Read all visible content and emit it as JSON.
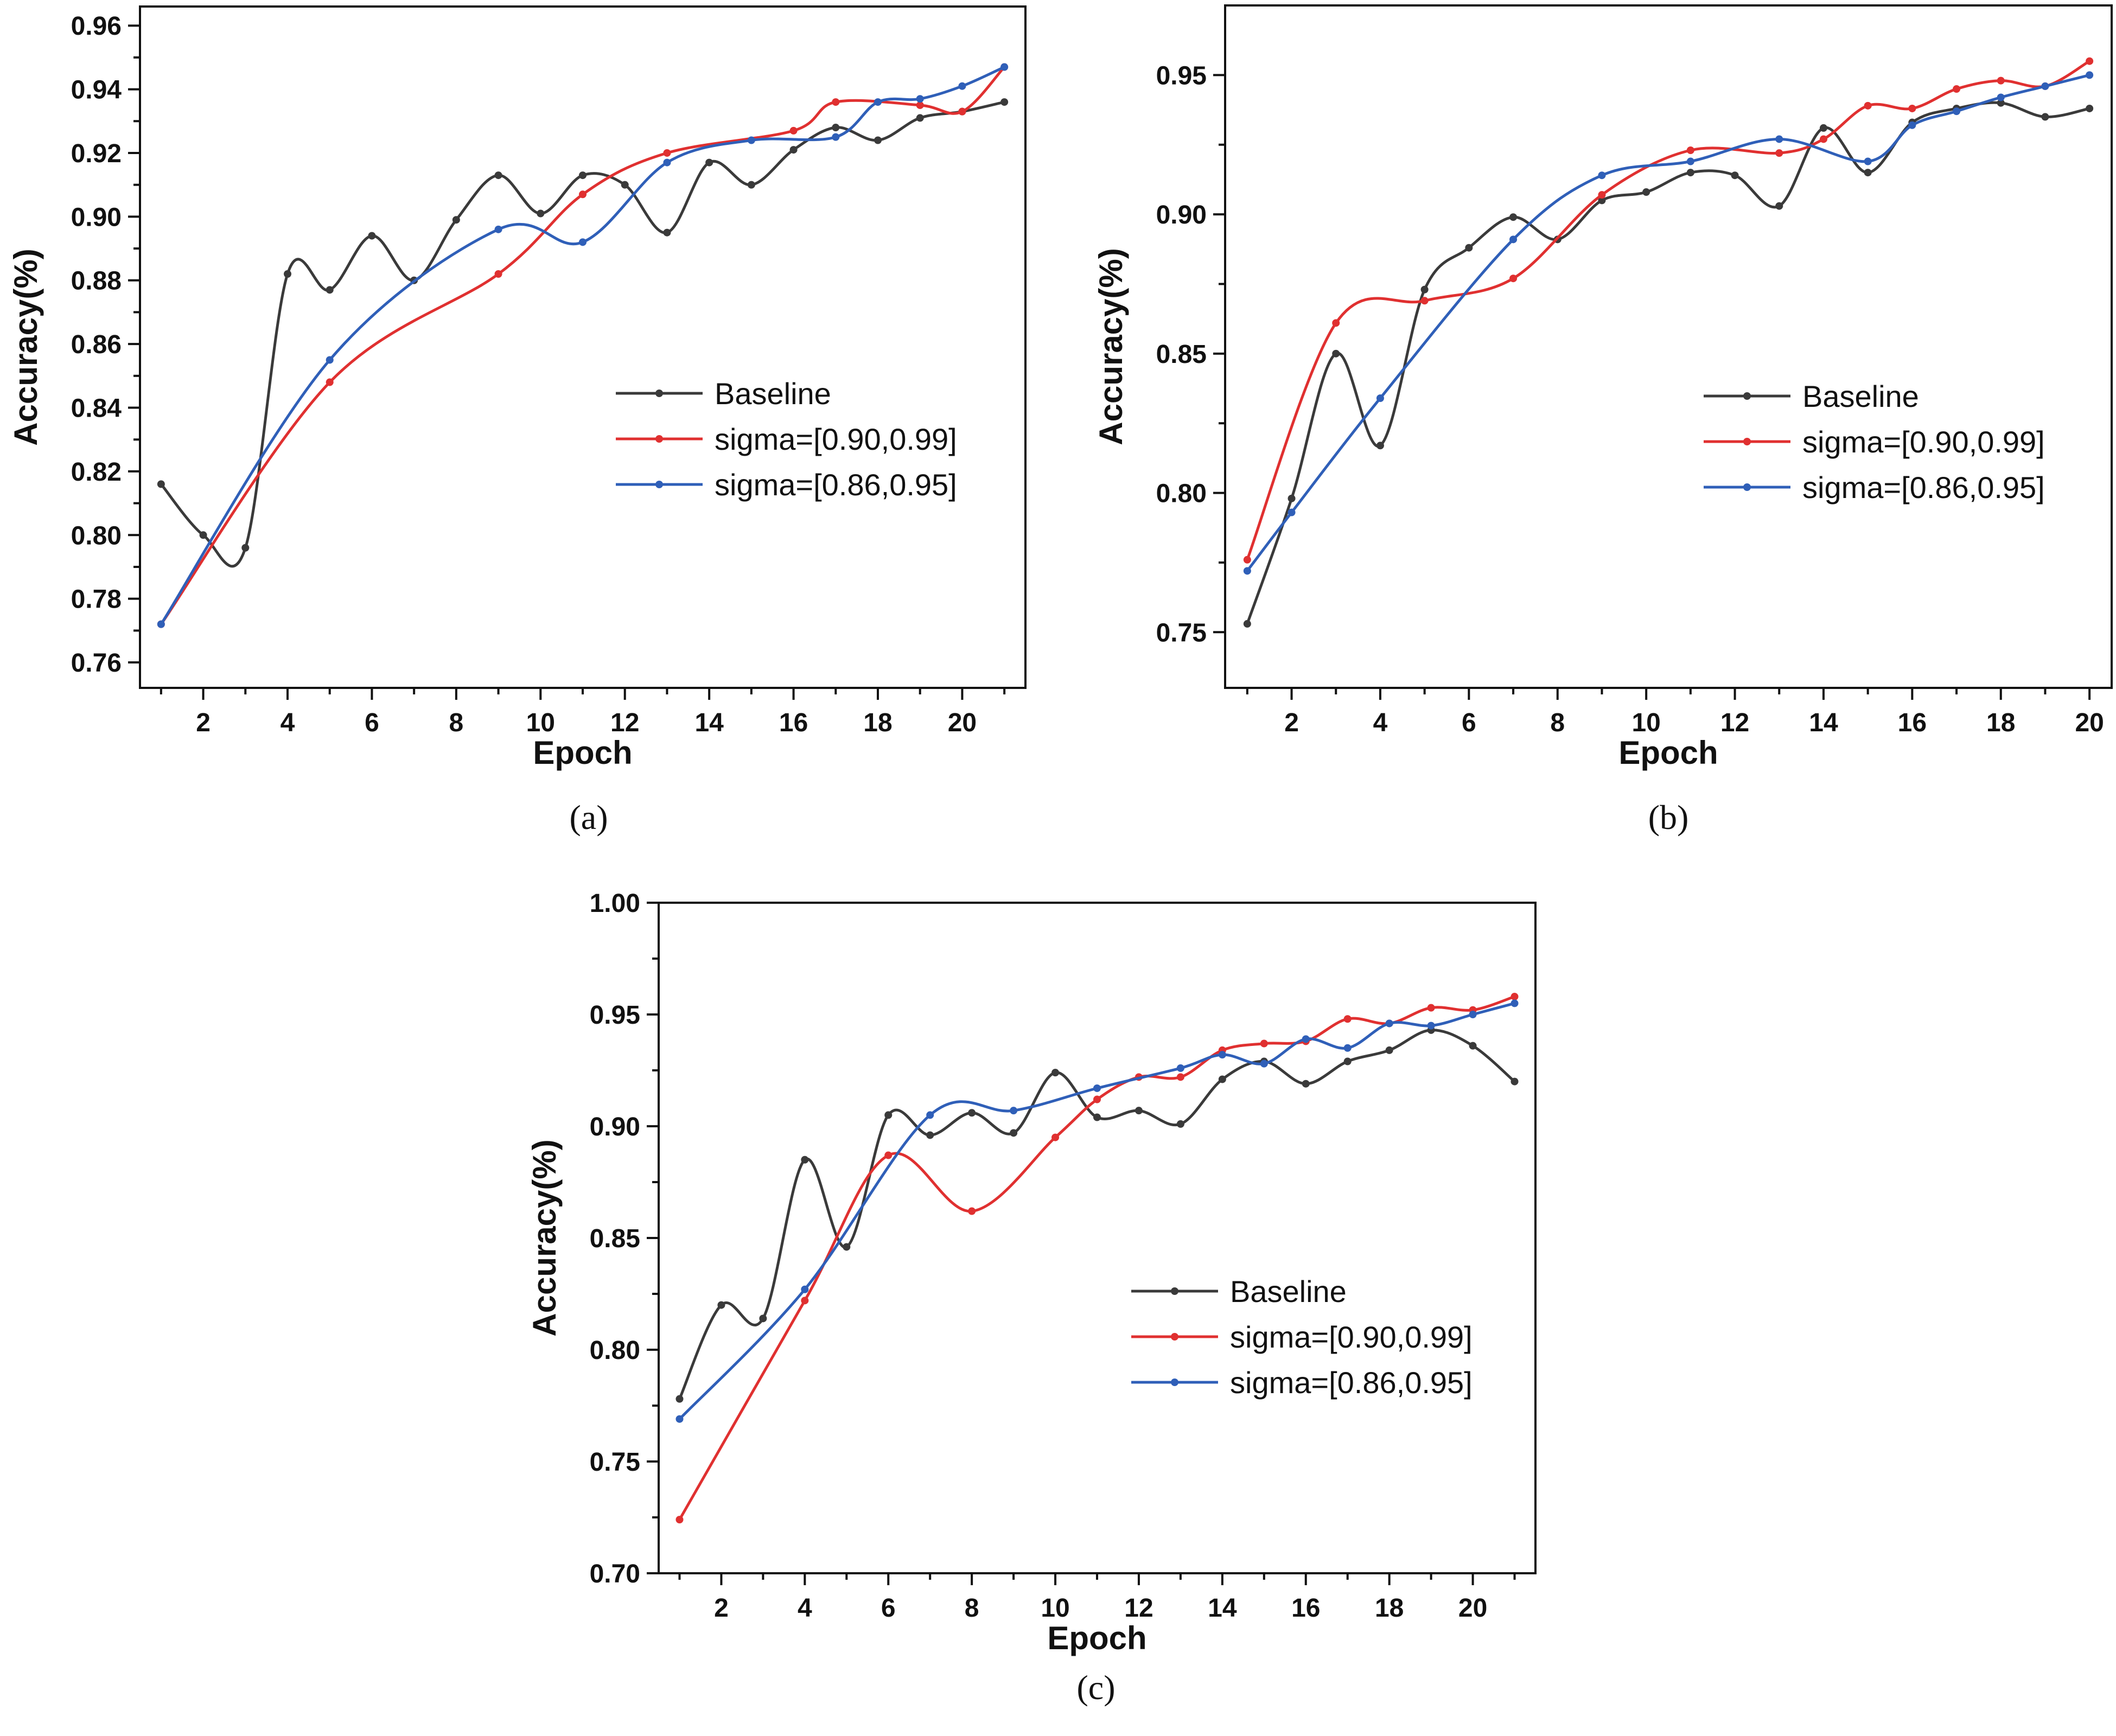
{
  "colors": {
    "baseline": "#3a3a3a",
    "sigma_090_099": "#e03030",
    "sigma_086_095": "#2f5fb8",
    "axis": "#111111"
  },
  "chart_data": [
    {
      "type": "line",
      "caption": "(a)",
      "xlabel": "Epoch",
      "ylabel": "Accuracy(%)",
      "xlim": [
        0.5,
        21.5
      ],
      "ylim": [
        0.752,
        0.966
      ],
      "xticks": [
        2,
        4,
        6,
        8,
        10,
        12,
        14,
        16,
        18,
        20
      ],
      "yticks": [
        0.76,
        0.78,
        0.8,
        0.82,
        0.84,
        0.86,
        0.88,
        0.9,
        0.92,
        0.94,
        0.96
      ],
      "ytick_labels": [
        "0.76",
        "0.78",
        "0.80",
        "0.82",
        "0.84",
        "0.86",
        "0.88",
        "0.90",
        "0.92",
        "0.94",
        "0.96"
      ],
      "grid": false,
      "legend_position": "right-middle",
      "series": [
        {
          "name": "Baseline",
          "color_key": "baseline",
          "points": [
            [
              1,
              0.816
            ],
            [
              2,
              0.8
            ],
            [
              3,
              0.796
            ],
            [
              4,
              0.882
            ],
            [
              5,
              0.877
            ],
            [
              6,
              0.894
            ],
            [
              7,
              0.88
            ],
            [
              8,
              0.899
            ],
            [
              9,
              0.913
            ],
            [
              10,
              0.901
            ],
            [
              11,
              0.913
            ],
            [
              12,
              0.91
            ],
            [
              13,
              0.895
            ],
            [
              14,
              0.917
            ],
            [
              15,
              0.91
            ],
            [
              16,
              0.921
            ],
            [
              17,
              0.928
            ],
            [
              18,
              0.924
            ],
            [
              19,
              0.931
            ],
            [
              20,
              0.933
            ],
            [
              21,
              0.936
            ]
          ]
        },
        {
          "name": "sigma=[0.90,0.99]",
          "color_key": "sigma_090_099",
          "points": [
            [
              1,
              0.772
            ],
            [
              5,
              0.848
            ],
            [
              9,
              0.882
            ],
            [
              11,
              0.907
            ],
            [
              13,
              0.92
            ],
            [
              16,
              0.927
            ],
            [
              17,
              0.936
            ],
            [
              19,
              0.935
            ],
            [
              20,
              0.933
            ],
            [
              21,
              0.947
            ]
          ]
        },
        {
          "name": "sigma=[0.86,0.95]",
          "color_key": "sigma_086_095",
          "points": [
            [
              1,
              0.772
            ],
            [
              5,
              0.855
            ],
            [
              9,
              0.896
            ],
            [
              11,
              0.892
            ],
            [
              13,
              0.917
            ],
            [
              15,
              0.924
            ],
            [
              17,
              0.925
            ],
            [
              18,
              0.936
            ],
            [
              19,
              0.937
            ],
            [
              20,
              0.941
            ],
            [
              21,
              0.947
            ]
          ]
        }
      ]
    },
    {
      "type": "line",
      "caption": "(b)",
      "xlabel": "Epoch",
      "ylabel": "Accuracy(%)",
      "xlim": [
        0.5,
        20.5
      ],
      "ylim": [
        0.73,
        0.975
      ],
      "xticks": [
        2,
        4,
        6,
        8,
        10,
        12,
        14,
        16,
        18,
        20
      ],
      "yticks": [
        0.75,
        0.8,
        0.85,
        0.9,
        0.95
      ],
      "ytick_labels": [
        "0.75",
        "0.80",
        "0.85",
        "0.90",
        "0.95"
      ],
      "grid": false,
      "legend_position": "right-middle",
      "series": [
        {
          "name": "Baseline",
          "color_key": "baseline",
          "points": [
            [
              1,
              0.753
            ],
            [
              2,
              0.798
            ],
            [
              3,
              0.85
            ],
            [
              4,
              0.817
            ],
            [
              5,
              0.873
            ],
            [
              6,
              0.888
            ],
            [
              7,
              0.899
            ],
            [
              8,
              0.891
            ],
            [
              9,
              0.905
            ],
            [
              10,
              0.908
            ],
            [
              11,
              0.915
            ],
            [
              12,
              0.914
            ],
            [
              13,
              0.903
            ],
            [
              14,
              0.931
            ],
            [
              15,
              0.915
            ],
            [
              16,
              0.933
            ],
            [
              17,
              0.938
            ],
            [
              18,
              0.94
            ],
            [
              19,
              0.935
            ],
            [
              20,
              0.938
            ]
          ]
        },
        {
          "name": "sigma=[0.90,0.99]",
          "color_key": "sigma_090_099",
          "points": [
            [
              1,
              0.776
            ],
            [
              3,
              0.861
            ],
            [
              5,
              0.869
            ],
            [
              7,
              0.877
            ],
            [
              9,
              0.907
            ],
            [
              11,
              0.923
            ],
            [
              13,
              0.922
            ],
            [
              14,
              0.927
            ],
            [
              15,
              0.939
            ],
            [
              16,
              0.938
            ],
            [
              17,
              0.945
            ],
            [
              18,
              0.948
            ],
            [
              19,
              0.946
            ],
            [
              20,
              0.955
            ]
          ]
        },
        {
          "name": "sigma=[0.86,0.95]",
          "color_key": "sigma_086_095",
          "points": [
            [
              1,
              0.772
            ],
            [
              2,
              0.793
            ],
            [
              4,
              0.834
            ],
            [
              7,
              0.891
            ],
            [
              9,
              0.914
            ],
            [
              11,
              0.919
            ],
            [
              13,
              0.927
            ],
            [
              15,
              0.919
            ],
            [
              16,
              0.932
            ],
            [
              17,
              0.937
            ],
            [
              18,
              0.942
            ],
            [
              19,
              0.946
            ],
            [
              20,
              0.95
            ]
          ]
        }
      ]
    },
    {
      "type": "line",
      "caption": "(c)",
      "xlabel": "Epoch",
      "ylabel": "Accuracy(%)",
      "xlim": [
        0.5,
        21.5
      ],
      "ylim": [
        0.7,
        1.0
      ],
      "xticks": [
        2,
        4,
        6,
        8,
        10,
        12,
        14,
        16,
        18,
        20
      ],
      "yticks": [
        0.7,
        0.75,
        0.8,
        0.85,
        0.9,
        0.95,
        1.0
      ],
      "ytick_labels": [
        "0.70",
        "0.75",
        "0.80",
        "0.85",
        "0.90",
        "0.95",
        "1.00"
      ],
      "grid": false,
      "legend_position": "right-middle",
      "series": [
        {
          "name": "Baseline",
          "color_key": "baseline",
          "points": [
            [
              1,
              0.778
            ],
            [
              2,
              0.82
            ],
            [
              3,
              0.814
            ],
            [
              4,
              0.885
            ],
            [
              5,
              0.846
            ],
            [
              6,
              0.905
            ],
            [
              7,
              0.896
            ],
            [
              8,
              0.906
            ],
            [
              9,
              0.897
            ],
            [
              10,
              0.924
            ],
            [
              11,
              0.904
            ],
            [
              12,
              0.907
            ],
            [
              13,
              0.901
            ],
            [
              14,
              0.921
            ],
            [
              15,
              0.929
            ],
            [
              16,
              0.919
            ],
            [
              17,
              0.929
            ],
            [
              18,
              0.934
            ],
            [
              19,
              0.943
            ],
            [
              20,
              0.936
            ],
            [
              21,
              0.92
            ]
          ]
        },
        {
          "name": "sigma=[0.90,0.99]",
          "color_key": "sigma_090_099",
          "points": [
            [
              1,
              0.724
            ],
            [
              4,
              0.822
            ],
            [
              6,
              0.887
            ],
            [
              8,
              0.862
            ],
            [
              10,
              0.895
            ],
            [
              11,
              0.912
            ],
            [
              12,
              0.922
            ],
            [
              13,
              0.922
            ],
            [
              14,
              0.934
            ],
            [
              15,
              0.937
            ],
            [
              16,
              0.938
            ],
            [
              17,
              0.948
            ],
            [
              18,
              0.946
            ],
            [
              19,
              0.953
            ],
            [
              20,
              0.952
            ],
            [
              21,
              0.958
            ]
          ]
        },
        {
          "name": "sigma=[0.86,0.95]",
          "color_key": "sigma_086_095",
          "points": [
            [
              1,
              0.769
            ],
            [
              4,
              0.827
            ],
            [
              7,
              0.905
            ],
            [
              9,
              0.907
            ],
            [
              11,
              0.917
            ],
            [
              13,
              0.926
            ],
            [
              14,
              0.932
            ],
            [
              15,
              0.928
            ],
            [
              16,
              0.939
            ],
            [
              17,
              0.935
            ],
            [
              18,
              0.946
            ],
            [
              19,
              0.945
            ],
            [
              20,
              0.95
            ],
            [
              21,
              0.955
            ]
          ]
        }
      ]
    }
  ]
}
